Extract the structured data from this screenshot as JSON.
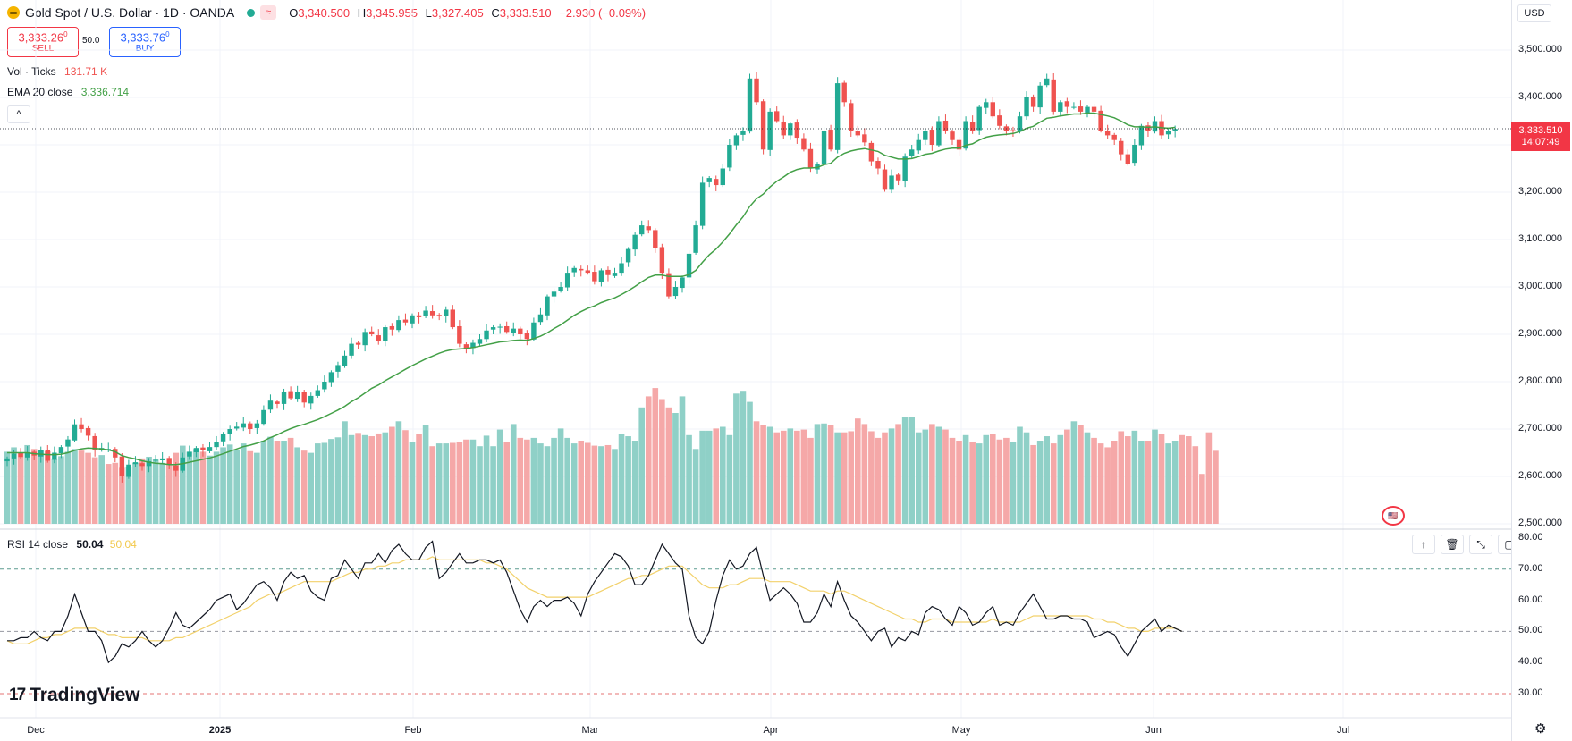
{
  "header": {
    "symbol_title": "Gold Spot / U.S. Dollar · 1D · OANDA",
    "wave_icon": "≈",
    "ohlc": [
      {
        "key": "O",
        "value": "3,340.500"
      },
      {
        "key": "H",
        "value": "3,345.955"
      },
      {
        "key": "L",
        "value": "3,327.405"
      },
      {
        "key": "C",
        "value": "3,333.510"
      }
    ],
    "change": "−2.930 (−0.09%)"
  },
  "trade": {
    "sell_price": "3,333.26",
    "sell_sup": "0",
    "sell_label": "SELL",
    "spread": "50.0",
    "buy_price": "3,333.76",
    "buy_sup": "0",
    "buy_label": "BUY"
  },
  "legend": {
    "vol_label": "Vol · Ticks",
    "vol_value": "131.71 K",
    "ema_label": "EMA 20 close",
    "ema_value": "3,336.714",
    "rsi_label": "RSI 14 close",
    "rsi_value": "50.04",
    "rsi_ma_value": "50.04",
    "collapse_icon": "^"
  },
  "axis": {
    "currency": "USD",
    "last_price": "3,333.510",
    "countdown": "14:07:49"
  },
  "brand": {
    "name": "TradingView",
    "mark": "17"
  },
  "colors": {
    "up": "#22ab94",
    "down": "#ef5350",
    "vol_up": "#8fd0c7",
    "vol_down": "#f5a8a8",
    "ema": "#43a047",
    "rsi": "#131722",
    "rsi_ma": "#f2d16b"
  },
  "chart_data": [
    {
      "type": "candlestick",
      "title": "Gold Spot / U.S. Dollar · 1D · OANDA",
      "x_ticks": [
        "Dec",
        "2025",
        "Feb",
        "Mar",
        "Apr",
        "May",
        "Jun",
        "Jul"
      ],
      "y_ticks": [
        "3,500.000",
        "3,400.000",
        "3,300.000",
        "3,200.000",
        "3,100.000",
        "3,000.000",
        "2,900.000",
        "2,800.000",
        "2,700.000",
        "2,600.000",
        "2,500.000"
      ],
      "ylim": [
        2500,
        3520
      ],
      "closes": [
        2638,
        2648,
        2641,
        2651,
        2644,
        2656,
        2633,
        2650,
        2662,
        2678,
        2710,
        2700,
        2686,
        2655,
        2660,
        2658,
        2640,
        2600,
        2625,
        2630,
        2622,
        2632,
        2635,
        2638,
        2625,
        2612,
        2640,
        2652,
        2660,
        2655,
        2662,
        2672,
        2690,
        2700,
        2705,
        2712,
        2700,
        2712,
        2740,
        2760,
        2753,
        2778,
        2765,
        2778,
        2756,
        2770,
        2782,
        2800,
        2820,
        2835,
        2855,
        2880,
        2878,
        2905,
        2900,
        2885,
        2915,
        2910,
        2930,
        2925,
        2940,
        2936,
        2950,
        2940,
        2940,
        2952,
        2915,
        2880,
        2870,
        2882,
        2890,
        2908,
        2915,
        2916,
        2905,
        2912,
        2900,
        2890,
        2925,
        2942,
        2980,
        2990,
        3000,
        3030,
        3040,
        3035,
        3030,
        3012,
        3035,
        3025,
        3030,
        3050,
        3080,
        3110,
        3130,
        3120,
        3082,
        3030,
        2980,
        3000,
        3020,
        3070,
        3130,
        3220,
        3230,
        3215,
        3250,
        3300,
        3320,
        3330,
        3440,
        3390,
        3290,
        3370,
        3350,
        3320,
        3345,
        3315,
        3290,
        3250,
        3260,
        3330,
        3290,
        3430,
        3390,
        3330,
        3320,
        3305,
        3265,
        3250,
        3205,
        3235,
        3225,
        3275,
        3290,
        3310,
        3330,
        3300,
        3350,
        3330,
        3310,
        3290,
        3350,
        3330,
        3380,
        3390,
        3360,
        3340,
        3330,
        3330,
        3360,
        3400,
        3380,
        3425,
        3440,
        3370,
        3390,
        3380,
        3380,
        3370,
        3380,
        3370,
        3330,
        3320,
        3310,
        3280,
        3260,
        3300,
        3340,
        3330,
        3350,
        3320,
        3330,
        3333.51
      ],
      "volume_ticks_k": [
        130,
        138,
        128,
        142,
        135,
        133,
        131,
        118,
        122,
        130,
        135,
        132,
        128,
        120,
        124,
        108,
        110,
        101,
        102,
        110,
        118,
        121,
        116,
        110,
        108,
        128,
        141,
        130,
        135,
        130,
        123,
        130,
        138,
        143,
        133,
        145,
        131,
        128,
        150,
        157,
        150,
        150,
        155,
        138,
        132,
        128,
        145,
        146,
        153,
        156,
        185,
        160,
        164,
        160,
        158,
        163,
        165,
        175,
        185,
        169,
        148,
        162,
        178,
        140,
        145,
        145,
        146,
        148,
        152,
        152,
        140,
        159,
        140,
        170,
        148,
        180,
        155,
        152,
        155,
        145,
        140,
        155,
        172,
        155,
        145,
        150,
        146,
        141,
        140,
        142,
        135,
        162,
        158,
        150,
        210,
        230,
        245,
        225,
        210,
        200,
        230,
        160,
        135,
        168,
        168,
        172,
        175,
        160,
        235,
        240,
        220,
        185,
        178,
        175,
        165,
        168,
        172,
        168,
        170,
        155,
        180,
        181,
        178,
        165,
        165,
        167,
        190,
        180,
        167,
        155,
        165,
        172,
        180,
        193,
        192,
        165,
        170,
        180,
        175,
        170,
        155,
        150,
        160,
        148,
        145,
        160,
        162,
        152,
        155,
        148,
        175,
        165,
        142,
        150,
        158,
        145,
        160,
        170,
        185,
        178,
        165,
        155,
        145,
        138,
        150,
        167,
        158,
        168,
        150,
        150,
        170,
        162,
        145,
        150,
        160,
        158,
        140,
        90,
        165,
        131.71
      ],
      "ema20": [
        2650,
        2650,
        2650,
        2650,
        2648,
        2647,
        2646,
        2646,
        2647,
        2650,
        2655,
        2658,
        2660,
        2659,
        2658,
        2656,
        2652,
        2644,
        2640,
        2637,
        2633,
        2630,
        2628,
        2627,
        2625,
        2625,
        2627,
        2630,
        2633,
        2636,
        2639,
        2643,
        2648,
        2653,
        2658,
        2663,
        2666,
        2670,
        2675,
        2682,
        2688,
        2695,
        2701,
        2706,
        2710,
        2715,
        2720,
        2726,
        2733,
        2740,
        2748,
        2758,
        2766,
        2776,
        2786,
        2793,
        2802,
        2810,
        2818,
        2826,
        2834,
        2841,
        2848,
        2854,
        2860,
        2865,
        2868,
        2869,
        2870,
        2872,
        2875,
        2878,
        2881,
        2884,
        2885,
        2887,
        2888,
        2887,
        2891,
        2896,
        2903,
        2912,
        2920,
        2930,
        2940,
        2948,
        2955,
        2960,
        2967,
        2972,
        2977,
        2984,
        2992,
        3001,
        3011,
        3020,
        3025,
        3025,
        3022,
        3022,
        3022,
        3026,
        3035,
        3052,
        3068,
        3080,
        3095,
        3112,
        3131,
        3148,
        3170,
        3186,
        3196,
        3211,
        3223,
        3232,
        3242,
        3248,
        3251,
        3251,
        3252,
        3258,
        3261,
        3274,
        3282,
        3287,
        3290,
        3292,
        3289,
        3286,
        3278,
        3274,
        3270,
        3270,
        3271,
        3275,
        3280,
        3282,
        3287,
        3291,
        3293,
        3293,
        3299,
        3302,
        3310,
        3316,
        3319,
        3321,
        3322,
        3324,
        3328,
        3335,
        3339,
        3348,
        3356,
        3358,
        3361,
        3363,
        3365,
        3365,
        3367,
        3367,
        3364,
        3361,
        3357,
        3350,
        3342,
        3338,
        3338,
        3337,
        3338,
        3336,
        3335,
        3336.714
      ]
    },
    {
      "type": "line",
      "title": "RSI 14 close",
      "y_ticks": [
        "80.00",
        "70.00",
        "60.00",
        "50.00",
        "40.00",
        "30.00"
      ],
      "ylim": [
        27,
        80
      ],
      "levels": [
        70,
        50,
        30
      ],
      "rsi": [
        47,
        47,
        48,
        48,
        50,
        48,
        47,
        50,
        50,
        55,
        62,
        56,
        50,
        50,
        47,
        40,
        42,
        46,
        45,
        47,
        50,
        47,
        45,
        47,
        51,
        56,
        52,
        51,
        53,
        55,
        57,
        60,
        61,
        62,
        57,
        59,
        62,
        65,
        66,
        64,
        60,
        66,
        69,
        67,
        68,
        63,
        61,
        60,
        67,
        68,
        73,
        70,
        67,
        72,
        72,
        75,
        72,
        76,
        78,
        75,
        73,
        73,
        77,
        79,
        67,
        69,
        72,
        75,
        72,
        72,
        73,
        73,
        72,
        73,
        69,
        63,
        57,
        53,
        58,
        60,
        58,
        60,
        60,
        61,
        59,
        55,
        62,
        66,
        69,
        72,
        75,
        74,
        71,
        65,
        65,
        68,
        73,
        78,
        75,
        72,
        70,
        55,
        48,
        46,
        50,
        60,
        68,
        73,
        70,
        71,
        75,
        77,
        68,
        60,
        62,
        64,
        62,
        59,
        53,
        53,
        56,
        62,
        58,
        66,
        60,
        55,
        53,
        50,
        47,
        50,
        51,
        45,
        48,
        47,
        50,
        49,
        56,
        58,
        57,
        54,
        52,
        58,
        56,
        52,
        53,
        56,
        58,
        52,
        53,
        52,
        56,
        59,
        62,
        58,
        54,
        54,
        55,
        55,
        54,
        54,
        53,
        48,
        49,
        50,
        49,
        45,
        42,
        46,
        50,
        52,
        54,
        50,
        52,
        51,
        50.04
      ],
      "rsi_ma": [
        47,
        46,
        46,
        46,
        47,
        48,
        48,
        49,
        49,
        50,
        51,
        51,
        51,
        51,
        50,
        49,
        49,
        48,
        48,
        48,
        48,
        47,
        47,
        47,
        47,
        48,
        48,
        49,
        50,
        51,
        52,
        53,
        54,
        55,
        56,
        57,
        58,
        60,
        61,
        62,
        62,
        63,
        64,
        65,
        66,
        66,
        66,
        66,
        66,
        67,
        68,
        69,
        69,
        70,
        70,
        71,
        71,
        72,
        72,
        73,
        73,
        73,
        73,
        74,
        73,
        73,
        73,
        73,
        73,
        73,
        73,
        72,
        72,
        71,
        70,
        68,
        66,
        64,
        63,
        62,
        61,
        61,
        61,
        61,
        61,
        61,
        61,
        62,
        63,
        64,
        65,
        66,
        67,
        67,
        68,
        68,
        69,
        70,
        71,
        71,
        71,
        69,
        67,
        65,
        64,
        64,
        64,
        65,
        65,
        66,
        67,
        67,
        67,
        66,
        66,
        66,
        66,
        65,
        64,
        63,
        63,
        63,
        62,
        63,
        63,
        62,
        61,
        60,
        59,
        58,
        57,
        56,
        55,
        54,
        54,
        53,
        53,
        54,
        54,
        54,
        53,
        53,
        53,
        53,
        53,
        53,
        54,
        53,
        53,
        53,
        53,
        54,
        55,
        55,
        55,
        55,
        55,
        55,
        55,
        55,
        55,
        54,
        54,
        53,
        53,
        52,
        51,
        51,
        50,
        50,
        51,
        51,
        51,
        51,
        50.04
      ]
    }
  ]
}
